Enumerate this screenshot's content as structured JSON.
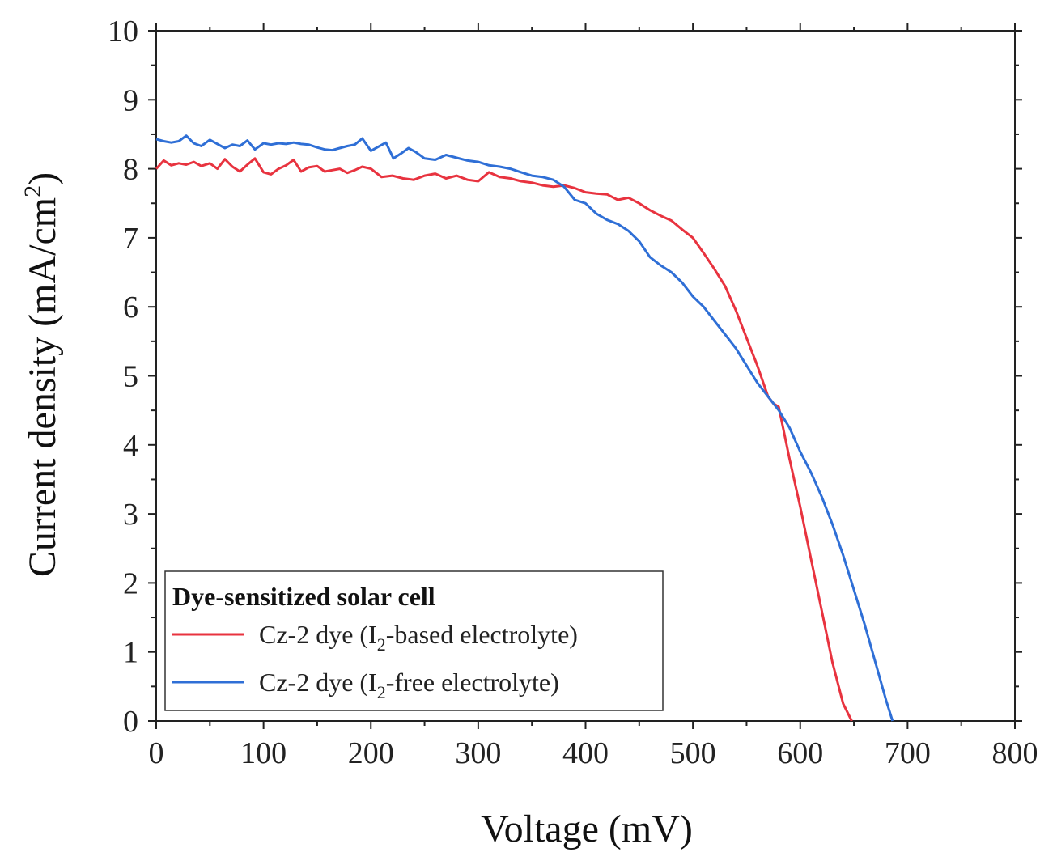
{
  "chart_data": {
    "type": "line",
    "title": "",
    "xlabel": "Voltage (mV)",
    "ylabel": {
      "main": "Current density (mA/cm",
      "sup": "2",
      "close": ")"
    },
    "xlim": [
      0,
      800
    ],
    "ylim": [
      0,
      10
    ],
    "xticks": [
      0,
      100,
      200,
      300,
      400,
      500,
      600,
      700,
      800
    ],
    "yticks": [
      0,
      1,
      2,
      3,
      4,
      5,
      6,
      7,
      8,
      9,
      10
    ],
    "grid": false,
    "legend": {
      "title": "Dye-sensitized solar cell",
      "position": "bottom-left"
    },
    "series": [
      {
        "name": "Cz-2 dye (I2-based electrolyte)",
        "label": {
          "pre": "Cz-2 dye (I",
          "sub": "2",
          "post": "-based electrolyte)"
        },
        "color": "#e8333f",
        "x": [
          0,
          7,
          14,
          21,
          28,
          35,
          42,
          50,
          57,
          64,
          71,
          78,
          85,
          92,
          100,
          107,
          114,
          121,
          128,
          135,
          142,
          150,
          157,
          164,
          171,
          178,
          185,
          192,
          200,
          210,
          220,
          230,
          240,
          250,
          260,
          270,
          280,
          290,
          300,
          310,
          320,
          330,
          340,
          350,
          360,
          370,
          380,
          390,
          400,
          410,
          420,
          430,
          440,
          450,
          460,
          470,
          480,
          490,
          500,
          510,
          520,
          530,
          540,
          550,
          560,
          570,
          575,
          580,
          590,
          600,
          610,
          620,
          630,
          640,
          648
        ],
        "y": [
          8.0,
          8.12,
          8.05,
          8.08,
          8.06,
          8.1,
          8.04,
          8.08,
          8.0,
          8.14,
          8.03,
          7.96,
          8.06,
          8.15,
          7.95,
          7.92,
          8.0,
          8.05,
          8.13,
          7.96,
          8.02,
          8.04,
          7.96,
          7.98,
          8.0,
          7.94,
          7.98,
          8.03,
          8.0,
          7.88,
          7.9,
          7.86,
          7.84,
          7.9,
          7.93,
          7.86,
          7.9,
          7.84,
          7.82,
          7.95,
          7.88,
          7.86,
          7.82,
          7.8,
          7.76,
          7.74,
          7.76,
          7.72,
          7.66,
          7.64,
          7.63,
          7.55,
          7.58,
          7.5,
          7.4,
          7.32,
          7.25,
          7.12,
          7.0,
          6.78,
          6.55,
          6.3,
          5.95,
          5.55,
          5.15,
          4.7,
          4.6,
          4.55,
          3.8,
          3.1,
          2.35,
          1.6,
          0.85,
          0.25,
          0.0
        ]
      },
      {
        "name": "Cz-2 dye (I2-free electrolyte)",
        "label": {
          "pre": "Cz-2 dye (I",
          "sub": "2",
          "post": "-free electrolyte)"
        },
        "color": "#2f6fd6",
        "x": [
          0,
          7,
          14,
          21,
          28,
          35,
          42,
          50,
          57,
          64,
          71,
          78,
          85,
          92,
          100,
          107,
          114,
          121,
          128,
          135,
          142,
          150,
          157,
          164,
          171,
          178,
          185,
          192,
          200,
          207,
          214,
          221,
          228,
          235,
          242,
          250,
          260,
          270,
          280,
          290,
          300,
          310,
          320,
          330,
          340,
          350,
          360,
          370,
          380,
          390,
          400,
          410,
          420,
          430,
          440,
          450,
          460,
          470,
          480,
          490,
          500,
          510,
          520,
          530,
          540,
          550,
          560,
          570,
          580,
          590,
          600,
          610,
          620,
          630,
          640,
          650,
          660,
          670,
          680,
          686
        ],
        "y": [
          8.43,
          8.4,
          8.38,
          8.4,
          8.48,
          8.37,
          8.33,
          8.42,
          8.36,
          8.3,
          8.35,
          8.33,
          8.41,
          8.28,
          8.37,
          8.35,
          8.37,
          8.36,
          8.38,
          8.36,
          8.35,
          8.31,
          8.28,
          8.27,
          8.3,
          8.33,
          8.35,
          8.44,
          8.26,
          8.32,
          8.38,
          8.15,
          8.22,
          8.3,
          8.24,
          8.15,
          8.13,
          8.2,
          8.16,
          8.12,
          8.1,
          8.05,
          8.03,
          8.0,
          7.95,
          7.9,
          7.88,
          7.84,
          7.74,
          7.55,
          7.5,
          7.35,
          7.26,
          7.2,
          7.1,
          6.95,
          6.72,
          6.6,
          6.5,
          6.35,
          6.15,
          6.0,
          5.8,
          5.6,
          5.4,
          5.15,
          4.9,
          4.7,
          4.5,
          4.25,
          3.9,
          3.6,
          3.25,
          2.85,
          2.4,
          1.9,
          1.4,
          0.85,
          0.3,
          0.0
        ]
      }
    ]
  }
}
